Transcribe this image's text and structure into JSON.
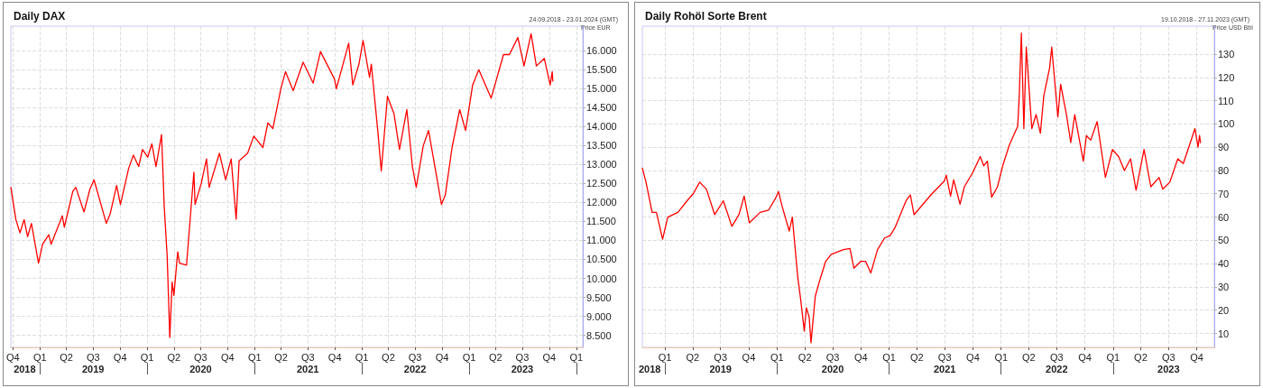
{
  "chart_data": [
    {
      "type": "line",
      "title": "Daily DAX",
      "subtitle": "24.09.2018 - 23.01.2024 (GMT)",
      "ylabel": "Price EUR",
      "color": "#ff0000",
      "marker": "none",
      "line_style": "solid",
      "grid": true,
      "x": [
        "2018-09-24",
        "2018-10-11",
        "2018-10-25",
        "2018-11-08",
        "2018-11-20",
        "2018-12-03",
        "2018-12-27",
        "2019-01-10",
        "2019-01-31",
        "2019-02-08",
        "2019-03-18",
        "2019-03-25",
        "2019-04-23",
        "2019-05-03",
        "2019-05-31",
        "2019-06-20",
        "2019-07-04",
        "2019-08-15",
        "2019-08-28",
        "2019-09-19",
        "2019-10-02",
        "2019-10-30",
        "2019-11-15",
        "2019-12-03",
        "2019-12-16",
        "2020-01-03",
        "2020-01-17",
        "2020-01-31",
        "2020-02-19",
        "2020-02-28",
        "2020-03-09",
        "2020-03-18",
        "2020-03-26",
        "2020-04-01",
        "2020-04-14",
        "2020-04-20",
        "2020-05-14",
        "2020-06-08",
        "2020-06-12",
        "2020-07-03",
        "2020-07-21",
        "2020-07-30",
        "2020-09-03",
        "2020-09-24",
        "2020-10-13",
        "2020-10-30",
        "2020-11-09",
        "2020-12-08",
        "2020-12-29",
        "2021-01-29",
        "2021-02-15",
        "2021-03-04",
        "2021-03-31",
        "2021-04-16",
        "2021-05-12",
        "2021-06-15",
        "2021-07-19",
        "2021-08-13",
        "2021-09-30",
        "2021-10-06",
        "2021-11-17",
        "2021-12-01",
        "2021-12-22",
        "2022-01-05",
        "2022-01-27",
        "2022-02-02",
        "2022-02-24",
        "2022-03-08",
        "2022-03-29",
        "2022-04-20",
        "2022-05-09",
        "2022-06-03",
        "2022-06-22",
        "2022-07-05",
        "2022-07-29",
        "2022-08-16",
        "2022-09-29",
        "2022-10-12",
        "2022-11-04",
        "2022-11-30",
        "2022-12-20",
        "2023-01-13",
        "2023-02-03",
        "2023-03-17",
        "2023-04-28",
        "2023-05-18",
        "2023-06-16",
        "2023-07-07",
        "2023-07-31",
        "2023-08-18",
        "2023-09-14",
        "2023-10-04",
        "2023-10-11",
        "2023-10-13"
      ],
      "values": [
        12400,
        11550,
        11200,
        11550,
        11100,
        11450,
        10400,
        10900,
        11150,
        10900,
        11650,
        11350,
        12300,
        12400,
        11750,
        12350,
        12600,
        11450,
        11700,
        12450,
        11950,
        12900,
        13250,
        12950,
        13400,
        13200,
        13550,
        12950,
        13790,
        11900,
        10600,
        8440,
        9900,
        9550,
        10700,
        10400,
        10350,
        12800,
        11950,
        12500,
        13150,
        12400,
        13300,
        12600,
        13150,
        11560,
        13100,
        13300,
        13750,
        13450,
        14100,
        13950,
        15000,
        15450,
        14950,
        15700,
        15150,
        15980,
        15250,
        15000,
        16200,
        15100,
        15650,
        16270,
        15300,
        15650,
        13900,
        12830,
        14800,
        14350,
        13400,
        14450,
        12950,
        12400,
        13500,
        13900,
        11950,
        12200,
        13450,
        14450,
        13900,
        15100,
        15500,
        14750,
        15900,
        15900,
        16350,
        15600,
        16450,
        15600,
        15800,
        15100,
        15450,
        15200
      ],
      "xlim": [
        "2018-09-24",
        "2024-01-23"
      ],
      "xticks": [
        {
          "value": "2018-10-01",
          "label": "Q4"
        },
        {
          "value": "2019-01-01",
          "label": "Q1"
        },
        {
          "value": "2019-04-01",
          "label": "Q2"
        },
        {
          "value": "2019-07-01",
          "label": "Q3"
        },
        {
          "value": "2019-10-01",
          "label": "Q4"
        },
        {
          "value": "2020-01-01",
          "label": "Q1"
        },
        {
          "value": "2020-04-01",
          "label": "Q2"
        },
        {
          "value": "2020-07-01",
          "label": "Q3"
        },
        {
          "value": "2020-10-01",
          "label": "Q4"
        },
        {
          "value": "2021-01-01",
          "label": "Q1"
        },
        {
          "value": "2021-04-01",
          "label": "Q2"
        },
        {
          "value": "2021-07-01",
          "label": "Q3"
        },
        {
          "value": "2021-10-01",
          "label": "Q4"
        },
        {
          "value": "2022-01-01",
          "label": "Q1"
        },
        {
          "value": "2022-04-01",
          "label": "Q2"
        },
        {
          "value": "2022-07-01",
          "label": "Q3"
        },
        {
          "value": "2022-10-01",
          "label": "Q4"
        },
        {
          "value": "2023-01-01",
          "label": "Q1"
        },
        {
          "value": "2023-04-01",
          "label": "Q2"
        },
        {
          "value": "2023-07-01",
          "label": "Q3"
        },
        {
          "value": "2023-10-01",
          "label": "Q4"
        },
        {
          "value": "2024-01-01",
          "label": "Q1"
        }
      ],
      "x2lim": [
        "2018-09-24",
        "2024-01-23"
      ],
      "x2ticks": [
        {
          "value": "2018-11-10",
          "label": "2018"
        },
        {
          "value": "2019-01-01",
          "label": null
        },
        {
          "value": "2019-07-01",
          "label": "2019"
        },
        {
          "value": "2020-01-01",
          "label": null
        },
        {
          "value": "2020-07-01",
          "label": "2020"
        },
        {
          "value": "2021-01-01",
          "label": null
        },
        {
          "value": "2021-07-01",
          "label": "2021"
        },
        {
          "value": "2022-01-01",
          "label": null
        },
        {
          "value": "2022-07-01",
          "label": "2022"
        },
        {
          "value": "2023-01-01",
          "label": null
        },
        {
          "value": "2023-07-01",
          "label": "2023"
        },
        {
          "value": "2024-01-01",
          "label": null
        }
      ],
      "ylim": [
        8180,
        16650
      ],
      "yticks": [
        {
          "value": 8500,
          "label": "8.500"
        },
        {
          "value": 9000,
          "label": "9.000"
        },
        {
          "value": 9500,
          "label": "9.500"
        },
        {
          "value": 10000,
          "label": "10.000"
        },
        {
          "value": 10500,
          "label": "10.500"
        },
        {
          "value": 11000,
          "label": "11.000"
        },
        {
          "value": 11500,
          "label": "11.500"
        },
        {
          "value": 12000,
          "label": "12.000"
        },
        {
          "value": 12500,
          "label": "12.500"
        },
        {
          "value": 13000,
          "label": "13.000"
        },
        {
          "value": 13500,
          "label": "13.500"
        },
        {
          "value": 14000,
          "label": "14.000"
        },
        {
          "value": 14500,
          "label": "14.500"
        },
        {
          "value": 15000,
          "label": "15.000"
        },
        {
          "value": 15500,
          "label": "15.500"
        },
        {
          "value": 16000,
          "label": "16.000"
        }
      ]
    },
    {
      "type": "line",
      "title": "Daily Rohöl Sorte Brent",
      "subtitle": "19.10.2018 - 27.11.2023 (GMT)",
      "ylabel": "Price USD Bbl",
      "color": "#ff0000",
      "marker": "none",
      "line_style": "solid",
      "grid": true,
      "x": [
        "2018-10-19",
        "2018-10-31",
        "2018-11-20",
        "2018-12-04",
        "2018-12-24",
        "2019-01-10",
        "2019-02-12",
        "2019-03-14",
        "2019-04-03",
        "2019-04-24",
        "2019-05-16",
        "2019-06-12",
        "2019-07-10",
        "2019-08-07",
        "2019-08-30",
        "2019-09-16",
        "2019-10-03",
        "2019-11-07",
        "2019-12-05",
        "2019-12-27",
        "2020-01-06",
        "2020-01-17",
        "2020-02-10",
        "2020-02-20",
        "2020-03-09",
        "2020-03-18",
        "2020-03-30",
        "2020-04-06",
        "2020-04-15",
        "2020-04-21",
        "2020-05-05",
        "2020-05-20",
        "2020-06-08",
        "2020-06-26",
        "2020-08-05",
        "2020-08-26",
        "2020-09-08",
        "2020-10-01",
        "2020-10-16",
        "2020-11-02",
        "2020-11-24",
        "2020-12-17",
        "2021-01-04",
        "2021-01-20",
        "2021-02-25",
        "2021-03-11",
        "2021-03-23",
        "2021-04-05",
        "2021-05-17",
        "2021-06-30",
        "2021-07-06",
        "2021-07-20",
        "2021-07-30",
        "2021-08-20",
        "2021-09-03",
        "2021-09-30",
        "2021-10-25",
        "2021-11-05",
        "2021-11-17",
        "2021-12-01",
        "2021-12-20",
        "2022-01-06",
        "2022-01-28",
        "2022-02-24",
        "2022-03-01",
        "2022-03-08",
        "2022-03-16",
        "2022-03-24",
        "2022-04-11",
        "2022-04-25",
        "2022-05-09",
        "2022-05-20",
        "2022-06-08",
        "2022-06-15",
        "2022-07-05",
        "2022-07-14",
        "2022-08-02",
        "2022-08-16",
        "2022-08-29",
        "2022-09-26",
        "2022-10-06",
        "2022-10-20",
        "2022-11-10",
        "2022-12-07",
        "2022-12-30",
        "2023-01-19",
        "2023-02-07",
        "2023-02-27",
        "2023-03-17",
        "2023-04-12",
        "2023-05-04",
        "2023-05-31",
        "2023-06-12",
        "2023-07-05",
        "2023-07-31",
        "2023-08-18",
        "2023-09-25",
        "2023-10-05",
        "2023-10-10",
        "2023-10-13"
      ],
      "values": [
        81,
        75,
        62,
        62,
        50.5,
        60,
        62,
        67,
        70,
        75,
        72,
        61,
        67,
        56,
        61,
        69,
        57.5,
        62,
        63,
        68,
        71,
        65,
        54,
        60,
        34,
        25,
        11,
        21,
        17,
        6,
        26,
        33,
        41,
        44,
        46,
        46.5,
        38,
        41,
        41,
        36,
        46,
        51,
        52,
        55.5,
        67,
        69.5,
        61,
        63,
        69.5,
        75.5,
        78,
        69,
        76,
        65.5,
        73,
        79,
        86,
        82,
        84,
        68.5,
        73,
        82,
        91,
        99,
        112,
        139,
        98,
        133,
        98,
        104,
        96,
        112,
        124,
        133,
        103,
        117,
        104,
        92,
        104,
        84,
        95,
        93,
        101,
        77,
        89,
        86,
        80,
        85,
        71.5,
        89,
        73,
        77,
        72,
        75,
        85,
        83,
        98,
        90,
        95,
        92
      ],
      "xlim": [
        "2018-10-19",
        "2023-11-27"
      ],
      "xticks": [
        {
          "value": "2019-01-01",
          "label": "Q1"
        },
        {
          "value": "2019-04-01",
          "label": "Q2"
        },
        {
          "value": "2019-07-01",
          "label": "Q3"
        },
        {
          "value": "2019-10-01",
          "label": "Q4"
        },
        {
          "value": "2020-01-01",
          "label": "Q1"
        },
        {
          "value": "2020-04-01",
          "label": "Q2"
        },
        {
          "value": "2020-07-01",
          "label": "Q3"
        },
        {
          "value": "2020-10-01",
          "label": "Q4"
        },
        {
          "value": "2021-01-01",
          "label": "Q1"
        },
        {
          "value": "2021-04-01",
          "label": "Q2"
        },
        {
          "value": "2021-07-01",
          "label": "Q3"
        },
        {
          "value": "2021-10-01",
          "label": "Q4"
        },
        {
          "value": "2022-01-01",
          "label": "Q1"
        },
        {
          "value": "2022-04-01",
          "label": "Q2"
        },
        {
          "value": "2022-07-01",
          "label": "Q3"
        },
        {
          "value": "2022-10-01",
          "label": "Q4"
        },
        {
          "value": "2023-01-01",
          "label": "Q1"
        },
        {
          "value": "2023-04-01",
          "label": "Q2"
        },
        {
          "value": "2023-07-01",
          "label": "Q3"
        },
        {
          "value": "2023-10-01",
          "label": "Q4"
        }
      ],
      "x2lim": [
        "2018-10-19",
        "2023-11-27"
      ],
      "x2ticks": [
        {
          "value": "2018-11-12",
          "label": "2018"
        },
        {
          "value": "2019-01-01",
          "label": null
        },
        {
          "value": "2019-07-01",
          "label": "2019"
        },
        {
          "value": "2020-01-01",
          "label": null
        },
        {
          "value": "2020-07-01",
          "label": "2020"
        },
        {
          "value": "2021-01-01",
          "label": null
        },
        {
          "value": "2021-07-01",
          "label": "2021"
        },
        {
          "value": "2022-01-01",
          "label": null
        },
        {
          "value": "2022-07-01",
          "label": "2022"
        },
        {
          "value": "2023-01-01",
          "label": null
        },
        {
          "value": "2023-07-01",
          "label": "2023"
        }
      ],
      "ylim": [
        4,
        142
      ],
      "yticks": [
        10,
        20,
        30,
        40,
        50,
        60,
        70,
        80,
        90,
        100,
        110,
        120,
        130
      ]
    }
  ]
}
